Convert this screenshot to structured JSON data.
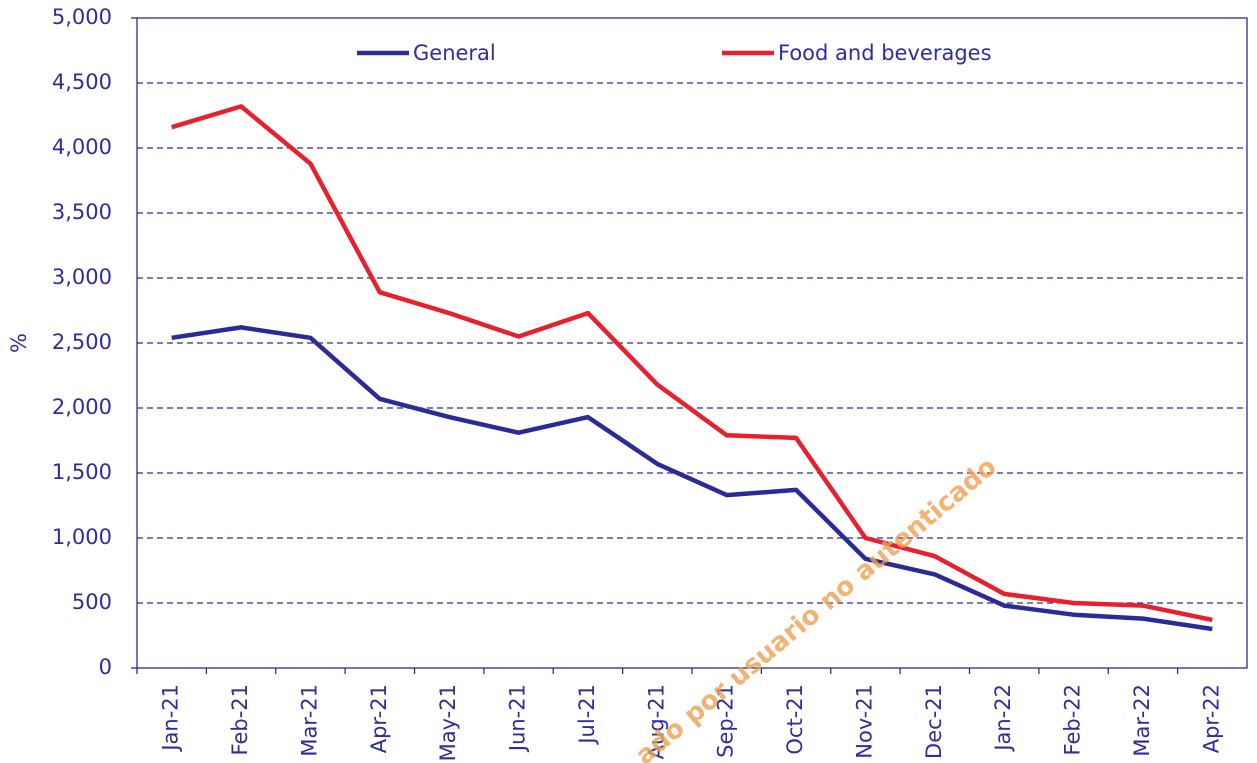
{
  "chart_data": {
    "type": "line",
    "y_label": "%",
    "categories": [
      "Jan-21",
      "Feb-21",
      "Mar-21",
      "Apr-21",
      "May-21",
      "Jun-21",
      "Jul-21",
      "Aug-21",
      "Sep-21",
      "Oct-21",
      "Nov-21",
      "Dec-21",
      "Jan-22",
      "Feb-22",
      "Mar-22",
      "Apr-22"
    ],
    "series": [
      {
        "name": "General",
        "color": "#2b2a99",
        "values": [
          2540,
          2620,
          2540,
          2070,
          1930,
          1810,
          1930,
          1570,
          1330,
          1370,
          840,
          720,
          480,
          410,
          380,
          300
        ]
      },
      {
        "name": "Food and beverages",
        "color": "#e8202e",
        "values": [
          4160,
          4320,
          3880,
          2890,
          2730,
          2550,
          2730,
          2180,
          1790,
          1770,
          1000,
          860,
          570,
          500,
          480,
          370
        ]
      }
    ],
    "ylim": [
      0,
      5000
    ],
    "yticks": [
      0,
      500,
      {
        "value": 1000,
        "label": "1,000"
      },
      {
        "value": 1500,
        "label": "1,500"
      },
      {
        "value": 2000,
        "label": "2,000"
      },
      {
        "value": 2500,
        "label": "2,500"
      },
      {
        "value": 3000,
        "label": "3,000"
      },
      {
        "value": 3500,
        "label": "3,500"
      },
      {
        "value": 4000,
        "label": "4,000"
      },
      {
        "value": 4500,
        "label": "4,500"
      },
      {
        "value": 5000,
        "label": "5,000"
      }
    ],
    "grid": true,
    "legend": "top",
    "annotations": [
      "ado por usuario no autenticado"
    ]
  }
}
